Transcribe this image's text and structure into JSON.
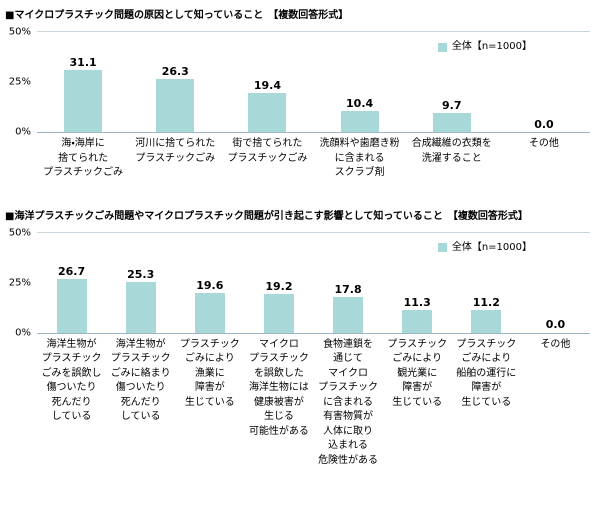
{
  "chart_data": [
    {
      "type": "bar",
      "title": "■マイクロプラスチック問題の原因として知っていること　【複数回答形式】",
      "legend": "全体【n=1000】",
      "y_ticks": [
        "50%",
        "25%",
        "0%"
      ],
      "ylim": [
        0,
        50
      ],
      "bar_color": "#a8d8d8",
      "grid": false,
      "legend_position": "top-right",
      "categories": [
        "海・海岸に\n捨てられた\nプラスチックごみ",
        "河川に捨てられた\nプラスチックごみ",
        "街で捨てられた\nプラスチックごみ",
        "洗顔料や歯磨き粉\nに含まれる\nスクラブ剤",
        "合成繊維の衣類を\n洗濯すること",
        "その他"
      ],
      "values": [
        31.1,
        26.3,
        19.4,
        10.4,
        9.7,
        0.0
      ]
    },
    {
      "type": "bar",
      "title": "■海洋プラスチックごみ問題やマイクロプラスチック問題が引き起こす影響として知っていること　【複数回答形式】",
      "legend": "全体【n=1000】",
      "y_ticks": [
        "50%",
        "25%",
        "0%"
      ],
      "ylim": [
        0,
        50
      ],
      "bar_color": "#a8d8d8",
      "grid": false,
      "legend_position": "top-right",
      "categories": [
        "海洋生物が\nプラスチック\nごみを誤飲し\n傷ついたり\n死んだり\nしている",
        "海洋生物が\nプラスチック\nごみに絡まり\n傷ついたり\n死んだり\nしている",
        "プラスチック\nごみにより\n漁業に\n障害が\n生じている",
        "マイクロ\nプラスチック\nを誤飲した\n海洋生物には\n健康被害が\n生じる\n可能性がある",
        "食物連鎖を\n通じて\nマイクロ\nプラスチック\nに含まれる\n有害物質が\n人体に取り\n込まれる\n危険性がある",
        "プラスチック\nごみにより\n観光業に\n障害が\n生じている",
        "プラスチック\nごみにより\n船舶の運行に\n障害が\n生じている",
        "その他"
      ],
      "values": [
        26.7,
        25.3,
        19.6,
        19.2,
        17.8,
        11.3,
        11.2,
        0.0
      ]
    }
  ]
}
